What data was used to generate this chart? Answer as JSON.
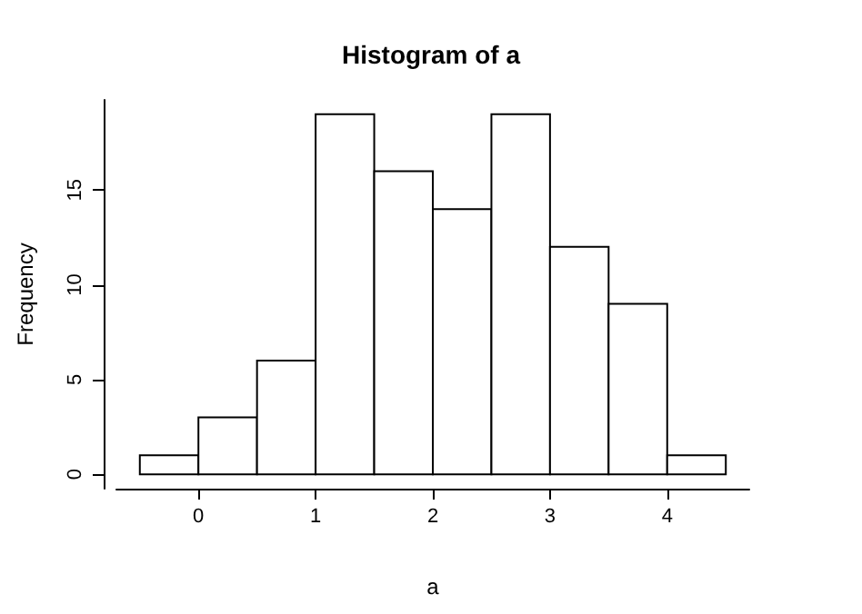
{
  "chart_data": {
    "type": "histogram",
    "title": "Histogram of a",
    "xlabel": "a",
    "ylabel": "Frequency",
    "bins": [
      -0.5,
      0,
      0.5,
      1,
      1.5,
      2,
      2.5,
      3,
      3.5,
      4,
      4.5
    ],
    "values": [
      1,
      3,
      6,
      19,
      16,
      14,
      19,
      12,
      9,
      1
    ],
    "color": "#ffffff",
    "xlim": [
      -0.7,
      4.7
    ],
    "xticks": [
      0,
      1,
      2,
      3,
      4
    ],
    "ylim": [
      -0.76,
      19.76
    ],
    "yticks": [
      0,
      5,
      10,
      15
    ],
    "grid": false
  }
}
